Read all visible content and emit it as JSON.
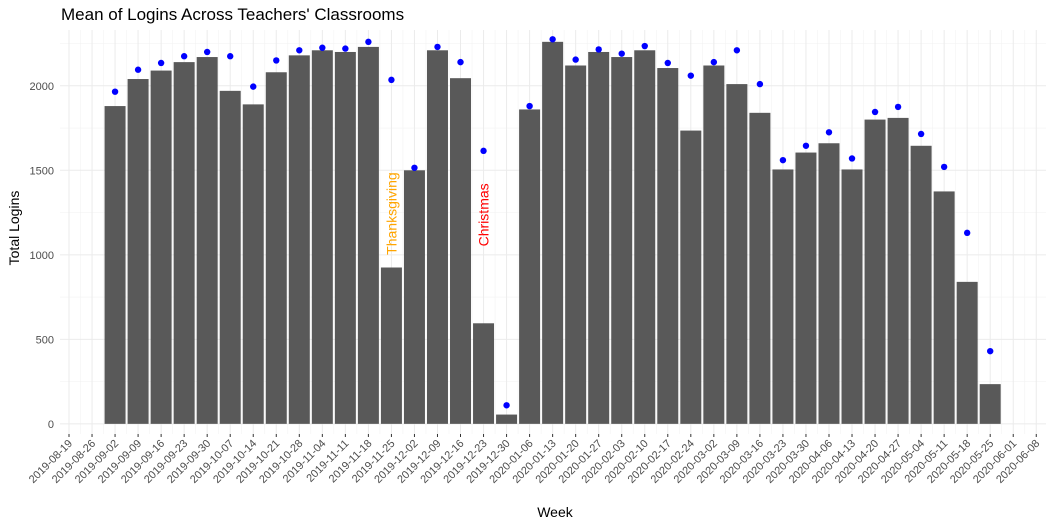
{
  "chart_data": {
    "type": "bar",
    "title": "Mean of Logins Across Teachers' Classrooms",
    "xlabel": "Week",
    "ylabel": "Total Logins",
    "ylim": [
      -60,
      2330
    ],
    "yticks": [
      0,
      500,
      1000,
      1500,
      2000
    ],
    "grid": true,
    "legend": "none",
    "colors": {
      "bars": "#595959",
      "points": "#0000ff"
    },
    "x_ticks": [
      "2019-08-19",
      "2019-08-26",
      "2019-09-02",
      "2019-09-09",
      "2019-09-16",
      "2019-09-23",
      "2019-09-30",
      "2019-10-07",
      "2019-10-14",
      "2019-10-21",
      "2019-10-28",
      "2019-11-04",
      "2019-11-11",
      "2019-11-18",
      "2019-11-25",
      "2019-12-02",
      "2019-12-09",
      "2019-12-16",
      "2019-12-23",
      "2019-12-30",
      "2020-01-06",
      "2020-01-13",
      "2020-01-20",
      "2020-01-27",
      "2020-02-03",
      "2020-02-10",
      "2020-02-17",
      "2020-02-24",
      "2020-03-02",
      "2020-03-09",
      "2020-03-16",
      "2020-03-23",
      "2020-03-30",
      "2020-04-06",
      "2020-04-13",
      "2020-04-20",
      "2020-04-27",
      "2020-05-04",
      "2020-05-11",
      "2020-05-18",
      "2020-05-25",
      "2020-06-01",
      "2020-06-08"
    ],
    "series": [
      {
        "kind": "bar",
        "weeks": [
          "2019-09-02",
          "2019-09-09",
          "2019-09-16",
          "2019-09-23",
          "2019-09-30",
          "2019-10-07",
          "2019-10-14",
          "2019-10-21",
          "2019-10-28",
          "2019-11-04",
          "2019-11-11",
          "2019-11-18",
          "2019-11-25",
          "2019-12-02",
          "2019-12-09",
          "2019-12-16",
          "2019-12-23",
          "2019-12-30",
          "2020-01-06",
          "2020-01-13",
          "2020-01-20",
          "2020-01-27",
          "2020-02-03",
          "2020-02-10",
          "2020-02-17",
          "2020-02-24",
          "2020-03-02",
          "2020-03-09",
          "2020-03-16",
          "2020-03-23",
          "2020-03-30",
          "2020-04-06",
          "2020-04-13",
          "2020-04-20",
          "2020-04-27",
          "2020-05-04",
          "2020-05-11",
          "2020-05-18",
          "2020-05-25"
        ],
        "values": [
          1880,
          2040,
          2090,
          2140,
          2170,
          1970,
          1890,
          2080,
          2180,
          2210,
          2200,
          2230,
          925,
          1500,
          2210,
          2045,
          595,
          55,
          1860,
          2260,
          2120,
          2200,
          2170,
          2210,
          2105,
          1735,
          2120,
          2010,
          1840,
          1505,
          1605,
          1660,
          1505,
          1800,
          1810,
          1645,
          1375,
          840,
          235
        ]
      },
      {
        "kind": "point",
        "weeks": [
          "2019-09-02",
          "2019-09-09",
          "2019-09-16",
          "2019-09-23",
          "2019-09-30",
          "2019-10-07",
          "2019-10-14",
          "2019-10-21",
          "2019-10-28",
          "2019-11-04",
          "2019-11-11",
          "2019-11-18",
          "2019-11-25",
          "2019-12-02",
          "2019-12-09",
          "2019-12-16",
          "2019-12-23",
          "2019-12-30",
          "2020-01-06",
          "2020-01-13",
          "2020-01-20",
          "2020-01-27",
          "2020-02-03",
          "2020-02-10",
          "2020-02-17",
          "2020-02-24",
          "2020-03-02",
          "2020-03-09",
          "2020-03-16",
          "2020-03-23",
          "2020-03-30",
          "2020-04-06",
          "2020-04-13",
          "2020-04-20",
          "2020-04-27",
          "2020-05-04",
          "2020-05-11",
          "2020-05-18",
          "2020-05-25"
        ],
        "values": [
          1965,
          2095,
          2135,
          2175,
          2200,
          2175,
          1995,
          2150,
          2210,
          2225,
          2220,
          2260,
          2035,
          1515,
          2230,
          2140,
          1615,
          110,
          1880,
          2275,
          2155,
          2215,
          2190,
          2235,
          2135,
          2060,
          2140,
          2210,
          2010,
          1560,
          1645,
          1725,
          1570,
          1845,
          1875,
          1715,
          1520,
          1130,
          430
        ]
      }
    ],
    "annotations": [
      {
        "text": "Thanksgiving",
        "week": "2019-11-25",
        "y": 1000,
        "color": "#ffa500"
      },
      {
        "text": "Christmas",
        "week": "2019-12-23",
        "y": 1050,
        "color": "#ff0000"
      }
    ]
  }
}
